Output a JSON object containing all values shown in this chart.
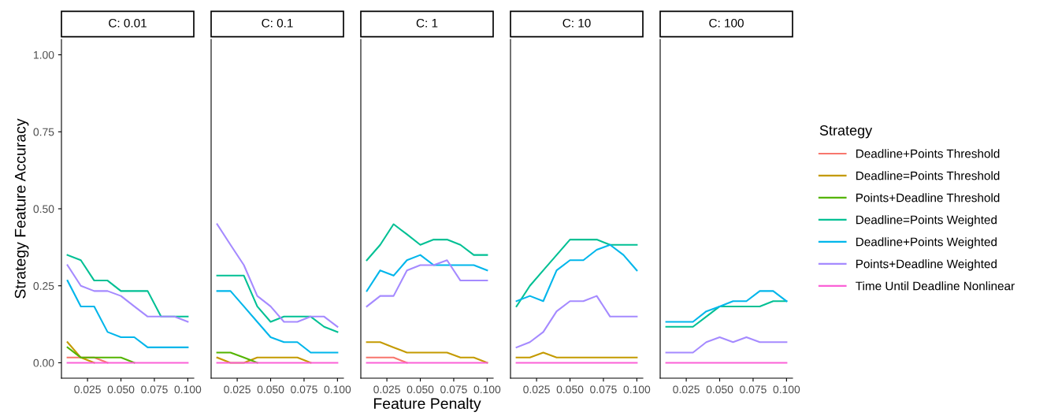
{
  "chart_data": [
    {
      "type": "line",
      "title": "C: 0.01",
      "ylabel": "Strategy Feature Accuracy",
      "x": [
        0.01,
        0.02,
        0.03,
        0.04,
        0.05,
        0.06,
        0.07,
        0.08,
        0.09,
        0.1
      ],
      "xlim": [
        0.0055,
        0.1045
      ],
      "ylim": [
        -0.05,
        1.05
      ],
      "xticks": [
        {
          "value": 0.025,
          "label": "0.025"
        },
        {
          "value": 0.05,
          "label": "0.050"
        },
        {
          "value": 0.075,
          "label": "0.075"
        },
        {
          "value": 0.1,
          "label": "0.100"
        }
      ],
      "yticks": [
        {
          "value": 0,
          "label": "0.00"
        },
        {
          "value": 0.25,
          "label": "0.25"
        },
        {
          "value": 0.5,
          "label": "0.50"
        },
        {
          "value": 0.75,
          "label": "0.75"
        },
        {
          "value": 1,
          "label": "1.00"
        }
      ],
      "grid": false,
      "series": [
        {
          "color": "#f8766d",
          "values": [
            0.017,
            0.017,
            0.017,
            0,
            null,
            null,
            null,
            null,
            null,
            null
          ]
        },
        {
          "color": "#c49a00",
          "values": [
            0.067,
            0.017,
            0,
            null,
            null,
            null,
            null,
            null,
            null,
            null
          ]
        },
        {
          "color": "#53b400",
          "values": [
            0.05,
            0.017,
            0.017,
            0.017,
            0.017,
            0,
            null,
            null,
            null,
            null
          ]
        },
        {
          "color": "#00c094",
          "values": [
            0.35,
            0.333,
            0.267,
            0.267,
            0.233,
            0.233,
            0.233,
            0.15,
            0.15,
            0.15
          ]
        },
        {
          "color": "#00b6eb",
          "values": [
            0.267,
            0.183,
            0.183,
            0.1,
            0.083,
            0.083,
            0.05,
            0.05,
            0.05,
            0.05
          ]
        },
        {
          "color": "#a58aff",
          "values": [
            0.317,
            0.25,
            0.233,
            0.233,
            0.217,
            0.183,
            0.15,
            0.15,
            0.15,
            0.133
          ]
        },
        {
          "color": "#fb61d7",
          "values": [
            0,
            0,
            0,
            0,
            0,
            0,
            0,
            0,
            0,
            0
          ]
        }
      ]
    },
    {
      "type": "line",
      "title": "C: 0.1",
      "tick_labels": "x",
      "x": [
        0.01,
        0.02,
        0.03,
        0.04,
        0.05,
        0.06,
        0.07,
        0.08,
        0.09,
        0.1
      ],
      "xlim": [
        0.0055,
        0.1045
      ],
      "ylim": [
        -0.05,
        1.05
      ],
      "xticks": [
        {
          "value": 0.025,
          "label": "0.025"
        },
        {
          "value": 0.05,
          "label": "0.050"
        },
        {
          "value": 0.075,
          "label": "0.075"
        },
        {
          "value": 0.1,
          "label": "0.100"
        }
      ],
      "grid": false,
      "series": [
        {
          "color": "#f8766d",
          "values": [
            null,
            null,
            null,
            null,
            null,
            null,
            null,
            null,
            null,
            null
          ]
        },
        {
          "color": "#c49a00",
          "values": [
            0.017,
            0,
            0,
            0.017,
            0.017,
            0.017,
            0.017,
            0,
            null,
            null
          ]
        },
        {
          "color": "#53b400",
          "values": [
            0.033,
            0.033,
            0.017,
            0,
            null,
            null,
            null,
            null,
            null,
            null
          ]
        },
        {
          "color": "#00c094",
          "values": [
            0.283,
            0.283,
            0.283,
            0.183,
            0.133,
            0.15,
            0.15,
            0.15,
            0.117,
            0.1
          ]
        },
        {
          "color": "#00b6eb",
          "values": [
            0.233,
            0.233,
            0.183,
            0.133,
            0.083,
            0.067,
            0.067,
            0.033,
            0.033,
            0.033
          ]
        },
        {
          "color": "#a58aff",
          "values": [
            0.45,
            0.383,
            0.317,
            0.217,
            0.183,
            0.133,
            0.133,
            0.15,
            0.15,
            0.117
          ]
        },
        {
          "color": "#fb61d7",
          "values": [
            0,
            0,
            0,
            0,
            0,
            0,
            0,
            0,
            0,
            0
          ]
        }
      ]
    },
    {
      "type": "line",
      "title": "C: 1",
      "xlabel": "Feature Penalty",
      "tick_labels": "x",
      "x": [
        0.01,
        0.02,
        0.03,
        0.04,
        0.05,
        0.06,
        0.07,
        0.08,
        0.09,
        0.1
      ],
      "xlim": [
        0.0055,
        0.1045
      ],
      "ylim": [
        -0.05,
        1.05
      ],
      "xticks": [
        {
          "value": 0.025,
          "label": "0.025"
        },
        {
          "value": 0.05,
          "label": "0.050"
        },
        {
          "value": 0.075,
          "label": "0.075"
        },
        {
          "value": 0.1,
          "label": "0.100"
        }
      ],
      "grid": false,
      "series": [
        {
          "color": "#f8766d",
          "values": [
            0.017,
            0.017,
            0.017,
            0,
            null,
            null,
            null,
            null,
            null,
            null
          ]
        },
        {
          "color": "#c49a00",
          "values": [
            0.067,
            0.067,
            0.05,
            0.033,
            0.033,
            0.033,
            0.033,
            0.017,
            0.017,
            0
          ]
        },
        {
          "color": "#53b400",
          "values": [
            null,
            null,
            null,
            null,
            null,
            null,
            null,
            null,
            null,
            null
          ]
        },
        {
          "color": "#00c094",
          "values": [
            0.333,
            0.383,
            0.45,
            0.417,
            0.383,
            0.4,
            0.4,
            0.383,
            0.35,
            0.35
          ]
        },
        {
          "color": "#00b6eb",
          "values": [
            0.233,
            0.3,
            0.283,
            0.333,
            0.35,
            0.317,
            0.317,
            0.317,
            0.317,
            0.3
          ]
        },
        {
          "color": "#a58aff",
          "values": [
            0.183,
            0.217,
            0.217,
            0.3,
            0.317,
            0.317,
            0.333,
            0.267,
            0.267,
            0.267
          ]
        },
        {
          "color": "#fb61d7",
          "values": [
            0,
            0,
            0,
            0,
            0,
            0,
            0,
            0,
            0,
            0
          ]
        }
      ]
    },
    {
      "type": "line",
      "title": "C: 10",
      "tick_labels": "x",
      "x": [
        0.01,
        0.02,
        0.03,
        0.04,
        0.05,
        0.06,
        0.07,
        0.08,
        0.09,
        0.1
      ],
      "xlim": [
        0.0055,
        0.1045
      ],
      "ylim": [
        -0.05,
        1.05
      ],
      "xticks": [
        {
          "value": 0.025,
          "label": "0.025"
        },
        {
          "value": 0.05,
          "label": "0.050"
        },
        {
          "value": 0.075,
          "label": "0.075"
        },
        {
          "value": 0.1,
          "label": "0.100"
        }
      ],
      "grid": false,
      "series": [
        {
          "color": "#f8766d",
          "values": [
            null,
            null,
            null,
            null,
            null,
            null,
            null,
            null,
            null,
            null
          ]
        },
        {
          "color": "#c49a00",
          "values": [
            0.017,
            0.017,
            0.033,
            0.017,
            0.017,
            0.017,
            0.017,
            0.017,
            0.017,
            0.017
          ]
        },
        {
          "color": "#53b400",
          "values": [
            null,
            null,
            null,
            null,
            null,
            null,
            null,
            null,
            null,
            null
          ]
        },
        {
          "color": "#00c094",
          "values": [
            0.183,
            0.25,
            0.3,
            0.35,
            0.4,
            0.4,
            0.4,
            0.383,
            0.383,
            0.383
          ]
        },
        {
          "color": "#00b6eb",
          "values": [
            0.2,
            0.217,
            0.2,
            0.3,
            0.333,
            0.333,
            0.367,
            0.383,
            0.35,
            0.3
          ]
        },
        {
          "color": "#a58aff",
          "values": [
            0.05,
            0.067,
            0.1,
            0.167,
            0.2,
            0.2,
            0.217,
            0.15,
            0.15,
            0.15
          ]
        },
        {
          "color": "#fb61d7",
          "values": [
            0,
            0,
            0,
            0,
            0,
            0,
            0,
            0,
            0,
            0
          ]
        }
      ]
    },
    {
      "type": "line",
      "title": "C: 100",
      "tick_labels": "x",
      "x": [
        0.01,
        0.02,
        0.03,
        0.04,
        0.05,
        0.06,
        0.07,
        0.08,
        0.09,
        0.1
      ],
      "xlim": [
        0.0055,
        0.1045
      ],
      "ylim": [
        -0.05,
        1.05
      ],
      "xticks": [
        {
          "value": 0.025,
          "label": "0.025"
        },
        {
          "value": 0.05,
          "label": "0.050"
        },
        {
          "value": 0.075,
          "label": "0.075"
        },
        {
          "value": 0.1,
          "label": "0.100"
        }
      ],
      "grid": false,
      "legend": "right",
      "legend_title": "Strategy",
      "series": [
        {
          "name": "Deadline+Points Threshold",
          "color": "#f8766d",
          "values": [
            null,
            null,
            null,
            null,
            null,
            null,
            null,
            null,
            null,
            null
          ]
        },
        {
          "name": "Deadline=Points Threshold",
          "color": "#c49a00",
          "values": [
            null,
            null,
            null,
            null,
            null,
            null,
            null,
            null,
            null,
            null
          ]
        },
        {
          "name": "Points+Deadline Threshold",
          "color": "#53b400",
          "values": [
            null,
            null,
            null,
            null,
            null,
            null,
            null,
            null,
            null,
            null
          ]
        },
        {
          "name": "Deadline=Points Weighted",
          "color": "#00c094",
          "values": [
            0.117,
            0.117,
            0.117,
            0.15,
            0.183,
            0.183,
            0.183,
            0.183,
            0.2,
            0.2
          ]
        },
        {
          "name": "Deadline+Points Weighted",
          "color": "#00b6eb",
          "values": [
            0.133,
            0.133,
            0.133,
            0.167,
            0.183,
            0.2,
            0.2,
            0.233,
            0.233,
            0.2
          ]
        },
        {
          "name": "Points+Deadline Weighted",
          "color": "#a58aff",
          "values": [
            0.033,
            0.033,
            0.033,
            0.067,
            0.083,
            0.067,
            0.083,
            0.067,
            0.067,
            0.067
          ]
        },
        {
          "name": "Time Until Deadline Nonlinear",
          "color": "#fb61d7",
          "values": [
            0,
            0,
            0,
            0,
            0,
            0,
            0,
            0,
            0,
            0
          ]
        }
      ]
    }
  ]
}
